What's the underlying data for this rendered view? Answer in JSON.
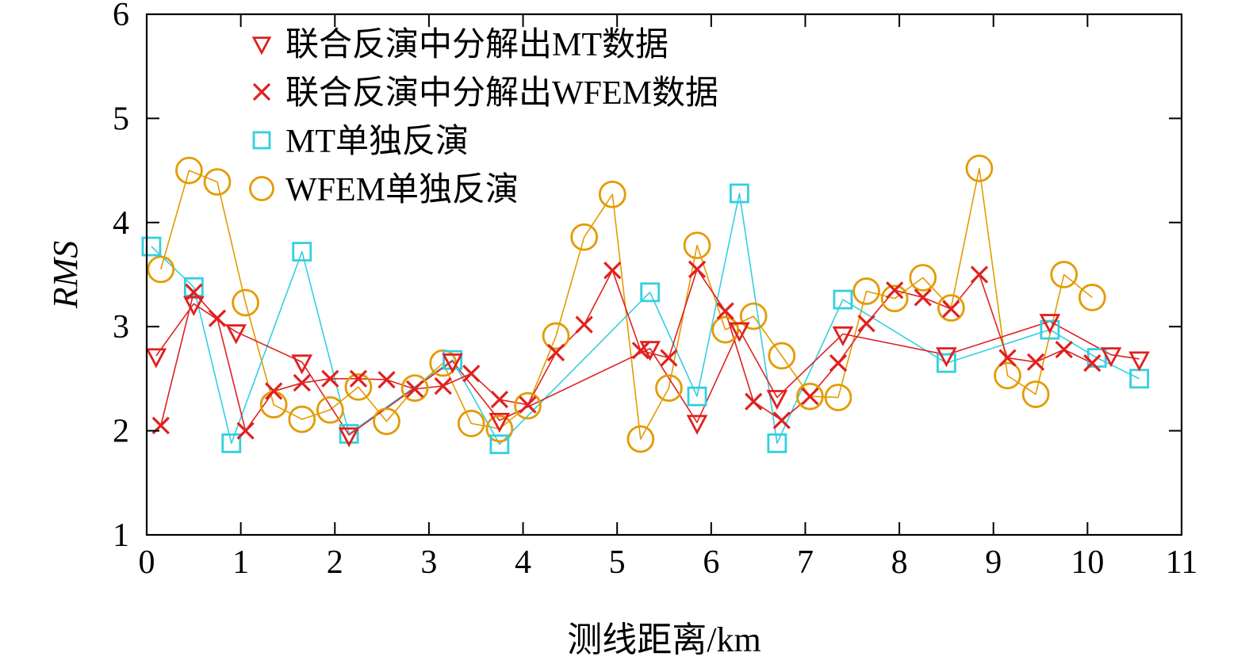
{
  "chart_data": {
    "type": "line",
    "xlabel": "测线距离/km",
    "ylabel": "RMS",
    "xlim": [
      0,
      11
    ],
    "ylim": [
      1,
      6
    ],
    "x_ticks": [
      0,
      1,
      2,
      3,
      4,
      5,
      6,
      7,
      8,
      9,
      10,
      11
    ],
    "y_ticks": [
      1,
      2,
      3,
      4,
      5,
      6
    ],
    "grid": false,
    "legend_position": "top-left",
    "series": [
      {
        "name": "联合反演中分解出MT数据",
        "marker": "triangle-down",
        "color": "#e02020",
        "x": [
          0.1,
          0.5,
          0.95,
          1.65,
          2.15,
          3.25,
          3.75,
          5.35,
          5.85,
          6.3,
          6.7,
          7.4,
          8.5,
          9.6,
          10.25,
          10.55
        ],
        "y": [
          2.72,
          3.22,
          2.95,
          2.66,
          1.96,
          2.67,
          2.1,
          2.79,
          2.08,
          2.97,
          2.32,
          2.93,
          2.73,
          3.05,
          2.73,
          2.69
        ]
      },
      {
        "name": "联合反演中分解出WFEM数据",
        "marker": "cross",
        "color": "#e02020",
        "x": [
          0.15,
          0.5,
          0.75,
          1.05,
          1.35,
          1.65,
          1.95,
          2.25,
          2.55,
          2.85,
          3.15,
          3.45,
          3.75,
          4.05,
          4.35,
          4.65,
          4.95,
          5.25,
          5.55,
          5.85,
          6.15,
          6.45,
          6.75,
          7.05,
          7.35,
          7.65,
          7.95,
          8.25,
          8.55,
          8.85,
          9.15,
          9.45,
          9.75,
          10.05
        ],
        "y": [
          2.05,
          3.33,
          3.08,
          2.0,
          2.38,
          2.46,
          2.5,
          2.5,
          2.49,
          2.4,
          2.43,
          2.55,
          2.3,
          2.25,
          2.75,
          3.02,
          3.54,
          2.77,
          2.7,
          3.55,
          3.15,
          2.28,
          2.1,
          2.33,
          2.65,
          3.03,
          3.35,
          3.28,
          3.17,
          3.5,
          2.7,
          2.66,
          2.78,
          2.65
        ]
      },
      {
        "name": "MT单独反演",
        "marker": "square",
        "color": "#33cfe0",
        "x": [
          0.05,
          0.5,
          0.9,
          1.65,
          2.15,
          3.25,
          3.75,
          5.35,
          5.85,
          6.3,
          6.7,
          7.4,
          8.5,
          9.6,
          10.1,
          10.55
        ],
        "y": [
          3.77,
          3.38,
          1.88,
          3.72,
          1.97,
          2.68,
          1.87,
          3.33,
          2.33,
          4.28,
          1.88,
          3.26,
          2.65,
          2.97,
          2.7,
          2.5
        ]
      },
      {
        "name": "WFEM单独反演",
        "marker": "circle",
        "color": "#e39b00",
        "x": [
          0.15,
          0.45,
          0.75,
          1.05,
          1.35,
          1.65,
          1.95,
          2.25,
          2.55,
          2.85,
          3.15,
          3.45,
          3.75,
          4.05,
          4.35,
          4.65,
          4.95,
          5.25,
          5.55,
          5.85,
          6.15,
          6.45,
          6.75,
          7.05,
          7.35,
          7.65,
          7.95,
          8.25,
          8.55,
          8.85,
          9.15,
          9.45,
          9.75,
          10.05
        ],
        "y": [
          3.55,
          4.5,
          4.39,
          3.23,
          2.25,
          2.11,
          2.2,
          2.42,
          2.09,
          2.41,
          2.65,
          2.07,
          2.02,
          2.24,
          2.91,
          3.86,
          4.27,
          1.92,
          2.41,
          3.78,
          2.97,
          3.1,
          2.72,
          2.33,
          2.32,
          3.34,
          3.27,
          3.47,
          3.18,
          4.52,
          2.53,
          2.35,
          3.5,
          3.28
        ]
      }
    ]
  }
}
